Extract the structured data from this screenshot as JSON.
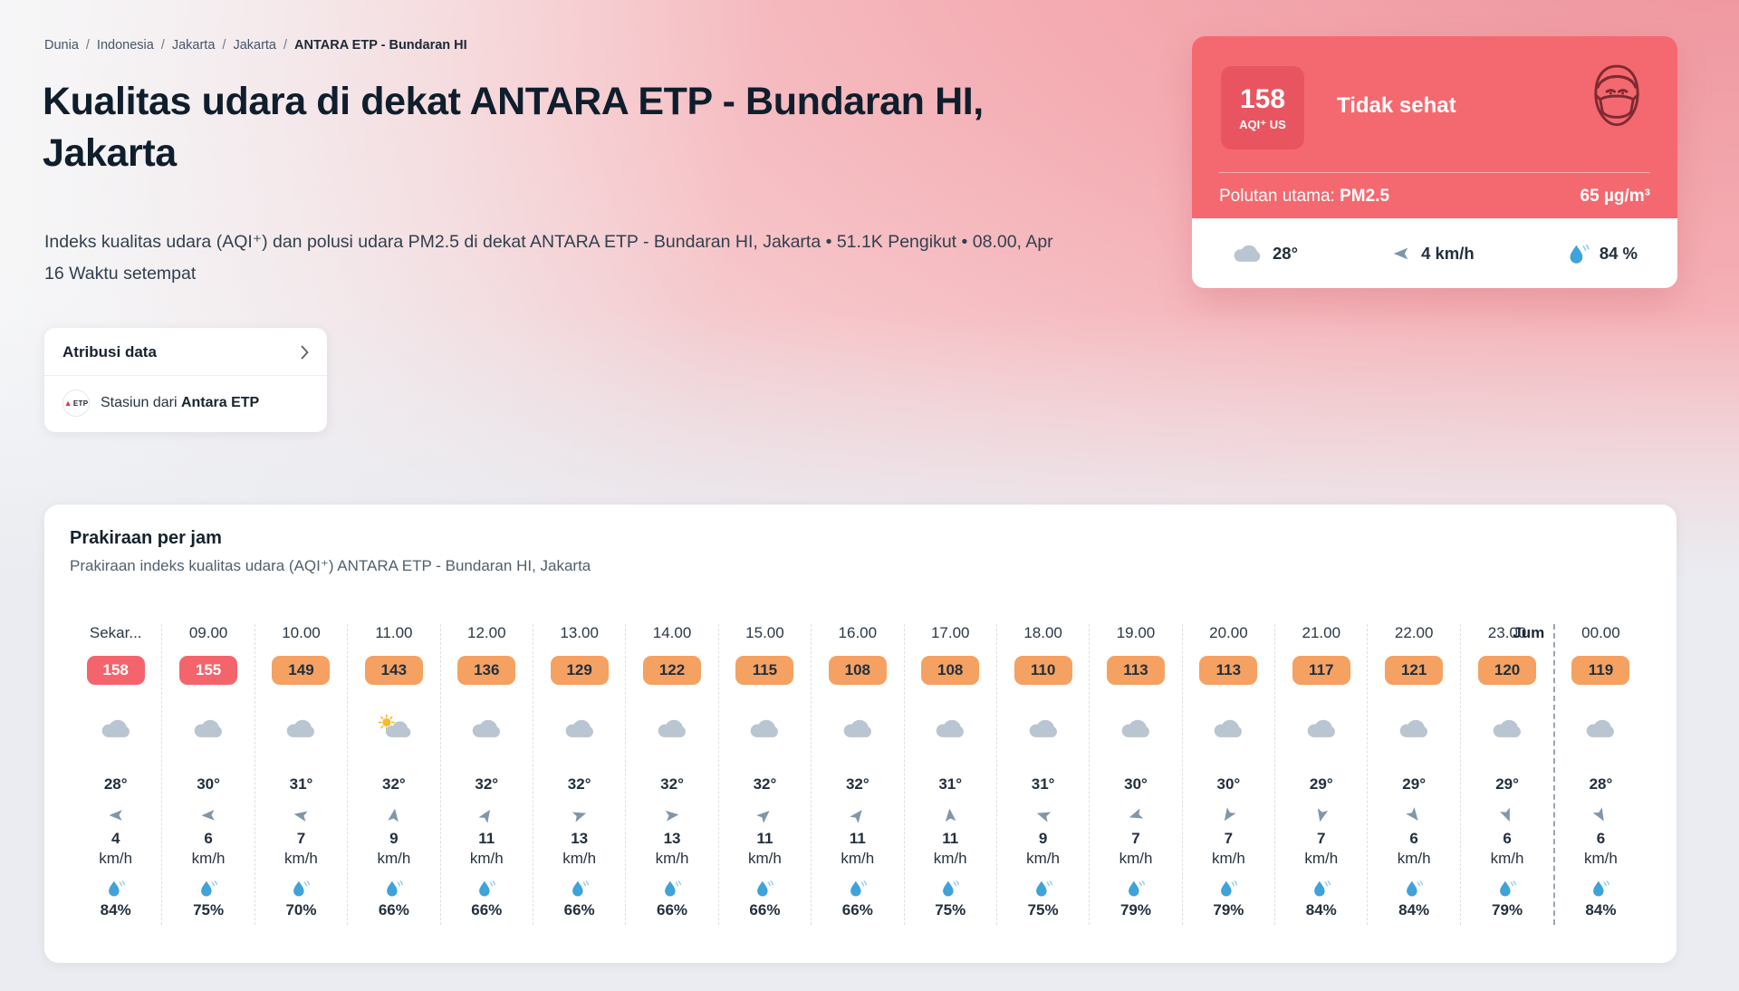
{
  "colors": {
    "card_red": "#f4696f",
    "badge_red": "#e85560",
    "chip_red": "#f4646c",
    "chip_orange": "#f5a162"
  },
  "breadcrumb": {
    "separator": "/",
    "items": [
      "Dunia",
      "Indonesia",
      "Jakarta",
      "Jakarta",
      "ANTARA ETP - Bundaran HI"
    ]
  },
  "header": {
    "title": "Kualitas udara di dekat ANTARA ETP - Bundaran HI, Jakarta",
    "subtitle": "Indeks kualitas udara (AQI⁺) dan polusi udara PM2.5 di dekat ANTARA ETP - Bundaran HI, Jakarta • 51.1K Pengikut • 08.00, Apr 16 Waktu setempat"
  },
  "attribution": {
    "title": "Atribusi data",
    "station_prefix": "Stasiun dari",
    "station_name": "Antara ETP",
    "logo_text": "ETP"
  },
  "aqi_card": {
    "value": "158",
    "scale": "AQI⁺ US",
    "level_label": "Tidak sehat",
    "pollutant_label": "Polutan utama:",
    "pollutant_name": "PM2.5",
    "pollutant_value": "65 µg/m³",
    "temperature": "28°",
    "wind": "4 km/h",
    "humidity": "84 %"
  },
  "forecast": {
    "title": "Prakiraan per jam",
    "subtitle": "Prakiraan indeks kualitas udara (AQI⁺) ANTARA ETP - Bundaran HI, Jakarta",
    "kmh_label": "km/h",
    "columns": [
      {
        "time": "Sekar...",
        "aqi": "158",
        "level": "red",
        "icon": "cloud",
        "temp": "28°",
        "wind_deg": 270,
        "wind": "4",
        "humidity": "84%"
      },
      {
        "time": "09.00",
        "aqi": "155",
        "level": "red",
        "icon": "cloud",
        "temp": "30°",
        "wind_deg": 268,
        "wind": "6",
        "humidity": "75%"
      },
      {
        "time": "10.00",
        "aqi": "149",
        "level": "orange",
        "icon": "cloud",
        "temp": "31°",
        "wind_deg": 281,
        "wind": "7",
        "humidity": "70%"
      },
      {
        "time": "11.00",
        "aqi": "143",
        "level": "orange",
        "icon": "partly-sunny",
        "temp": "32°",
        "wind_deg": 8,
        "wind": "9",
        "humidity": "66%"
      },
      {
        "time": "12.00",
        "aqi": "136",
        "level": "orange",
        "icon": "cloud",
        "temp": "32°",
        "wind_deg": 33,
        "wind": "11",
        "humidity": "66%"
      },
      {
        "time": "13.00",
        "aqi": "129",
        "level": "orange",
        "icon": "cloud",
        "temp": "32°",
        "wind_deg": 72,
        "wind": "13",
        "humidity": "66%"
      },
      {
        "time": "14.00",
        "aqi": "122",
        "level": "orange",
        "icon": "cloud",
        "temp": "32°",
        "wind_deg": 84,
        "wind": "13",
        "humidity": "66%"
      },
      {
        "time": "15.00",
        "aqi": "115",
        "level": "orange",
        "icon": "cloud",
        "temp": "32°",
        "wind_deg": 48,
        "wind": "11",
        "humidity": "66%"
      },
      {
        "time": "16.00",
        "aqi": "108",
        "level": "orange",
        "icon": "cloud",
        "temp": "32°",
        "wind_deg": 38,
        "wind": "11",
        "humidity": "66%"
      },
      {
        "time": "17.00",
        "aqi": "108",
        "level": "orange",
        "icon": "cloud",
        "temp": "31°",
        "wind_deg": 355,
        "wind": "11",
        "humidity": "75%"
      },
      {
        "time": "18.00",
        "aqi": "110",
        "level": "orange",
        "icon": "cloud",
        "temp": "31°",
        "wind_deg": 288,
        "wind": "9",
        "humidity": "75%"
      },
      {
        "time": "19.00",
        "aqi": "113",
        "level": "orange",
        "icon": "cloud",
        "temp": "30°",
        "wind_deg": 252,
        "wind": "7",
        "humidity": "79%"
      },
      {
        "time": "20.00",
        "aqi": "113",
        "level": "orange",
        "icon": "cloud",
        "temp": "30°",
        "wind_deg": 214,
        "wind": "7",
        "humidity": "79%"
      },
      {
        "time": "21.00",
        "aqi": "117",
        "level": "orange",
        "icon": "cloud",
        "temp": "29°",
        "wind_deg": 193,
        "wind": "7",
        "humidity": "84%"
      },
      {
        "time": "22.00",
        "aqi": "121",
        "level": "orange",
        "icon": "cloud",
        "temp": "29°",
        "wind_deg": 142,
        "wind": "6",
        "humidity": "84%"
      },
      {
        "time": "23.00",
        "aqi": "120",
        "level": "orange",
        "icon": "cloud",
        "temp": "29°",
        "wind_deg": 158,
        "wind": "6",
        "humidity": "79%"
      },
      {
        "time": "00.00",
        "day_label": "Jum",
        "aqi": "119",
        "level": "orange",
        "icon": "cloud",
        "temp": "28°",
        "wind_deg": 150,
        "wind": "6",
        "humidity": "84%"
      }
    ]
  }
}
